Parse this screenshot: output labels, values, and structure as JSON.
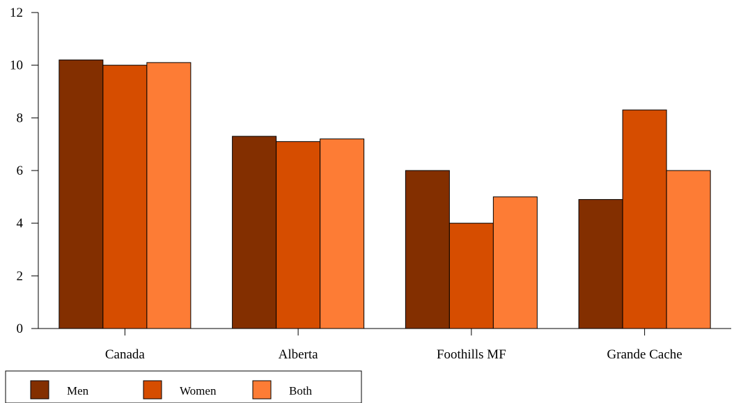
{
  "chart_data": {
    "type": "bar",
    "categories": [
      "Canada",
      "Alberta",
      "Foothills MF",
      "Grande Cache"
    ],
    "series": [
      {
        "name": "Men",
        "values": [
          10.2,
          7.3,
          6.0,
          4.9
        ],
        "color": "#832f00"
      },
      {
        "name": "Women",
        "values": [
          10.0,
          7.1,
          4.0,
          8.3
        ],
        "color": "#d64d00"
      },
      {
        "name": "Both",
        "values": [
          10.1,
          7.2,
          5.0,
          6.0
        ],
        "color": "#fd7c35"
      }
    ],
    "ylim": [
      0,
      12
    ],
    "yticks": [
      0,
      2,
      4,
      6,
      8,
      10,
      12
    ],
    "grid": false,
    "legend_position": "bottom-left"
  }
}
